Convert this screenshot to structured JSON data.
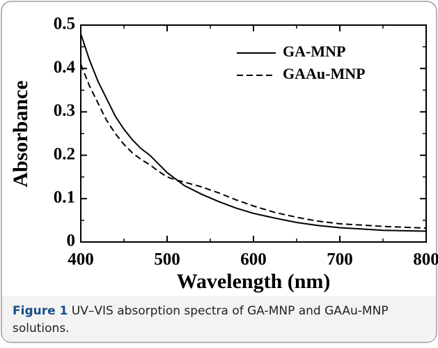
{
  "chart_data": {
    "type": "line",
    "xlabel": "Wavelength (nm)",
    "ylabel": "Absorbance",
    "x": [
      400,
      410,
      420,
      430,
      440,
      450,
      460,
      470,
      480,
      490,
      500,
      510,
      520,
      540,
      560,
      580,
      600,
      625,
      650,
      675,
      700,
      750,
      800
    ],
    "series": [
      {
        "name": "GA-MNP",
        "color": "#000000",
        "linestyle": "solid",
        "values": [
          0.48,
          0.42,
          0.37,
          0.33,
          0.29,
          0.26,
          0.235,
          0.215,
          0.2,
          0.18,
          0.16,
          0.145,
          0.13,
          0.11,
          0.093,
          0.078,
          0.066,
          0.055,
          0.045,
          0.038,
          0.033,
          0.027,
          0.025
        ]
      },
      {
        "name": "GAAu-MNP",
        "color": "#000000",
        "linestyle": "dashed",
        "values": [
          0.41,
          0.36,
          0.32,
          0.28,
          0.25,
          0.225,
          0.205,
          0.19,
          0.178,
          0.163,
          0.15,
          0.143,
          0.138,
          0.127,
          0.113,
          0.097,
          0.083,
          0.068,
          0.057,
          0.048,
          0.042,
          0.036,
          0.032
        ]
      }
    ],
    "xlim": [
      400,
      800
    ],
    "xticks": [
      400,
      500,
      600,
      700,
      800
    ],
    "xticks_minor": [
      450,
      550,
      650,
      750
    ],
    "ylim": [
      0,
      0.5
    ],
    "yticks": [
      0,
      0.1,
      0.2,
      0.3,
      0.4,
      0.5
    ],
    "yticks_minor": [
      0.05,
      0.15,
      0.25,
      0.35,
      0.45
    ],
    "legend": "upper right",
    "grid": false
  },
  "caption": {
    "label": "Figure 1",
    "lines": [
      "UV–VIS absorption spectra of GA-MNP and GAAu-MNP",
      "solutions."
    ]
  }
}
